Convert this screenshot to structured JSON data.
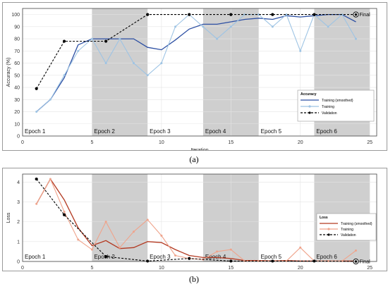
{
  "captions": {
    "a": "(a)",
    "b": "(b)"
  },
  "chart_data": [
    {
      "type": "line",
      "xlabel": "Iteration",
      "ylabel": "Accuracy (%)",
      "xlim": [
        0,
        25.5
      ],
      "ylim": [
        0,
        105
      ],
      "xticks": [
        0,
        5,
        10,
        15,
        20,
        25
      ],
      "yticks": [
        0,
        10,
        20,
        30,
        40,
        50,
        60,
        70,
        80,
        90,
        100
      ],
      "epochs": [
        {
          "label": "Epoch 1",
          "start": 0,
          "end": 5,
          "shaded": false
        },
        {
          "label": "Epoch 2",
          "start": 5,
          "end": 9,
          "shaded": true
        },
        {
          "label": "Epoch 3",
          "start": 9,
          "end": 13,
          "shaded": false
        },
        {
          "label": "Epoch 4",
          "start": 13,
          "end": 17,
          "shaded": true
        },
        {
          "label": "Epoch 5",
          "start": 17,
          "end": 21,
          "shaded": false
        },
        {
          "label": "Epoch 6",
          "start": 21,
          "end": 25,
          "shaded": true
        }
      ],
      "legend": {
        "title": "Accuracy",
        "position": "bottom-right"
      },
      "final_label": "Final",
      "series": [
        {
          "name": "Training (smoothed)",
          "style": "solid",
          "color": "#2c4fa3",
          "x": [
            1,
            2,
            3,
            4,
            5,
            6,
            7,
            8,
            9,
            10,
            11,
            12,
            13,
            14,
            15,
            16,
            17,
            18,
            19,
            20,
            21,
            22,
            23,
            24
          ],
          "y": [
            20,
            30,
            48,
            75,
            80,
            80,
            80,
            80,
            73,
            71,
            79,
            88,
            92,
            92,
            94,
            96,
            97,
            96,
            99,
            98,
            99,
            100,
            100,
            94
          ]
        },
        {
          "name": "Training",
          "style": "solid-marker",
          "color": "#9ec4e4",
          "x": [
            1,
            2,
            3,
            4,
            5,
            6,
            7,
            8,
            9,
            10,
            11,
            12,
            13,
            14,
            15,
            16,
            17,
            18,
            19,
            20,
            21,
            22,
            23,
            24
          ],
          "y": [
            20,
            30,
            50,
            70,
            80,
            60,
            80,
            60,
            50,
            60,
            90,
            100,
            90,
            80,
            90,
            100,
            100,
            90,
            100,
            70,
            100,
            90,
            100,
            80
          ]
        },
        {
          "name": "Validation",
          "style": "dashed-marker",
          "color": "#000000",
          "x": [
            1,
            3,
            6,
            9,
            12,
            15,
            18,
            21,
            24
          ],
          "y": [
            39,
            78,
            78,
            100,
            100,
            100,
            100,
            100,
            100
          ]
        }
      ]
    },
    {
      "type": "line",
      "xlabel": "Iteration",
      "ylabel": "Loss",
      "xlim": [
        0,
        25.5
      ],
      "ylim": [
        0,
        4.4
      ],
      "xticks": [
        0,
        5,
        10,
        15,
        20,
        25
      ],
      "yticks": [
        0,
        1,
        2,
        3,
        4
      ],
      "epochs": [
        {
          "label": "Epoch 1",
          "start": 0,
          "end": 5,
          "shaded": false
        },
        {
          "label": "Epoch 2",
          "start": 5,
          "end": 9,
          "shaded": true
        },
        {
          "label": "Epoch 3",
          "start": 9,
          "end": 13,
          "shaded": false
        },
        {
          "label": "Epoch 4",
          "start": 13,
          "end": 17,
          "shaded": true
        },
        {
          "label": "Epoch 5",
          "start": 17,
          "end": 21,
          "shaded": false
        },
        {
          "label": "Epoch 6",
          "start": 21,
          "end": 25,
          "shaded": true
        }
      ],
      "legend": {
        "title": "Loss",
        "position": "right"
      },
      "final_label": "Final",
      "series": [
        {
          "name": "Training (smoothed)",
          "style": "solid",
          "color": "#b33a22",
          "x": [
            1,
            2,
            3,
            4,
            5,
            6,
            7,
            8,
            9,
            10,
            11,
            12,
            13,
            14,
            15,
            16,
            17,
            18,
            19,
            20,
            21,
            22,
            23,
            24
          ],
          "y": [
            2.9,
            4.15,
            3.1,
            1.7,
            0.8,
            1.05,
            0.65,
            0.7,
            1.0,
            0.95,
            0.6,
            0.3,
            0.2,
            0.2,
            0.15,
            0.05,
            0.05,
            0.03,
            0.05,
            0.02,
            0.02,
            0.02,
            0.02,
            0.02
          ]
        },
        {
          "name": "Training",
          "style": "solid-marker",
          "color": "#efa48c",
          "x": [
            1,
            2,
            3,
            4,
            5,
            6,
            7,
            8,
            9,
            10,
            11,
            12,
            13,
            14,
            15,
            16,
            17,
            18,
            19,
            20,
            21,
            22,
            23,
            24
          ],
          "y": [
            2.9,
            4.15,
            2.5,
            1.1,
            0.6,
            2.0,
            0.7,
            1.5,
            2.1,
            1.3,
            0.3,
            0.15,
            0.1,
            0.5,
            0.6,
            0.02,
            0.02,
            0.02,
            0.02,
            0.7,
            0.02,
            0.02,
            0.02,
            0.55
          ]
        },
        {
          "name": "Validation",
          "style": "dashed-marker",
          "color": "#000000",
          "x": [
            1,
            3,
            6,
            9,
            12,
            15,
            18,
            21,
            24
          ],
          "y": [
            4.15,
            2.35,
            0.25,
            0.02,
            0.15,
            0.02,
            0.02,
            0.02,
            0.0
          ]
        }
      ]
    }
  ]
}
